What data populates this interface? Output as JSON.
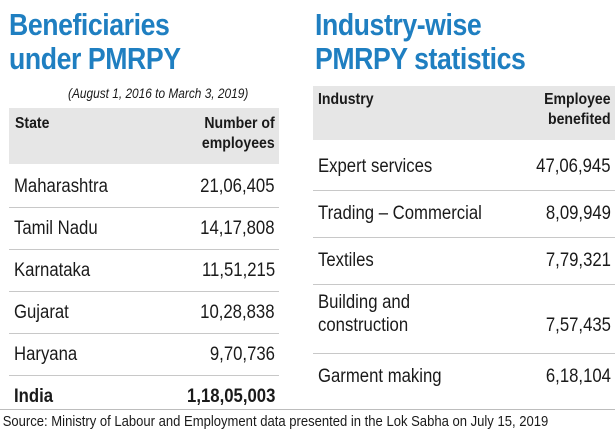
{
  "left": {
    "title_line1": "Beneficiaries",
    "title_line2": "under PMRPY",
    "subtitle": "(August 1, 2016 to March 3, 2019)",
    "header_state": "State",
    "header_number": "Number of\nemployees"
  },
  "right": {
    "title_line1": "Industry-wise",
    "title_line2": "PMRPY statistics",
    "header_industry": "Industry",
    "header_employee": "Employee\nbenefited"
  },
  "source": "Source: Ministry of Labour and Employment data presented in the Lok Sabha on July 15, 2019",
  "colors": {
    "title": "#1f7fc1",
    "header_band": "#e6e6e6"
  },
  "chart_data": [
    {
      "type": "table",
      "title": "Beneficiaries under PMRPY",
      "subtitle": "(August 1, 2016 to March 3, 2019)",
      "columns": [
        "State",
        "Number of employees"
      ],
      "rows": [
        [
          "Maharashtra",
          "21,06,405"
        ],
        [
          "Tamil Nadu",
          "14,17,808"
        ],
        [
          "Karnataka",
          "11,51,215"
        ],
        [
          "Gujarat",
          "10,28,838"
        ],
        [
          "Haryana",
          "9,70,736"
        ],
        [
          "India",
          "1,18,05,003"
        ]
      ]
    },
    {
      "type": "table",
      "title": "Industry-wise PMRPY statistics",
      "columns": [
        "Industry",
        "Employee benefited"
      ],
      "rows": [
        [
          "Expert services",
          "47,06,945"
        ],
        [
          "Trading – Commercial",
          "8,09,949"
        ],
        [
          "Textiles",
          "7,79,321"
        ],
        [
          "Building and\nconstruction",
          "7,57,435"
        ],
        [
          "Garment making",
          "6,18,104"
        ]
      ]
    }
  ]
}
